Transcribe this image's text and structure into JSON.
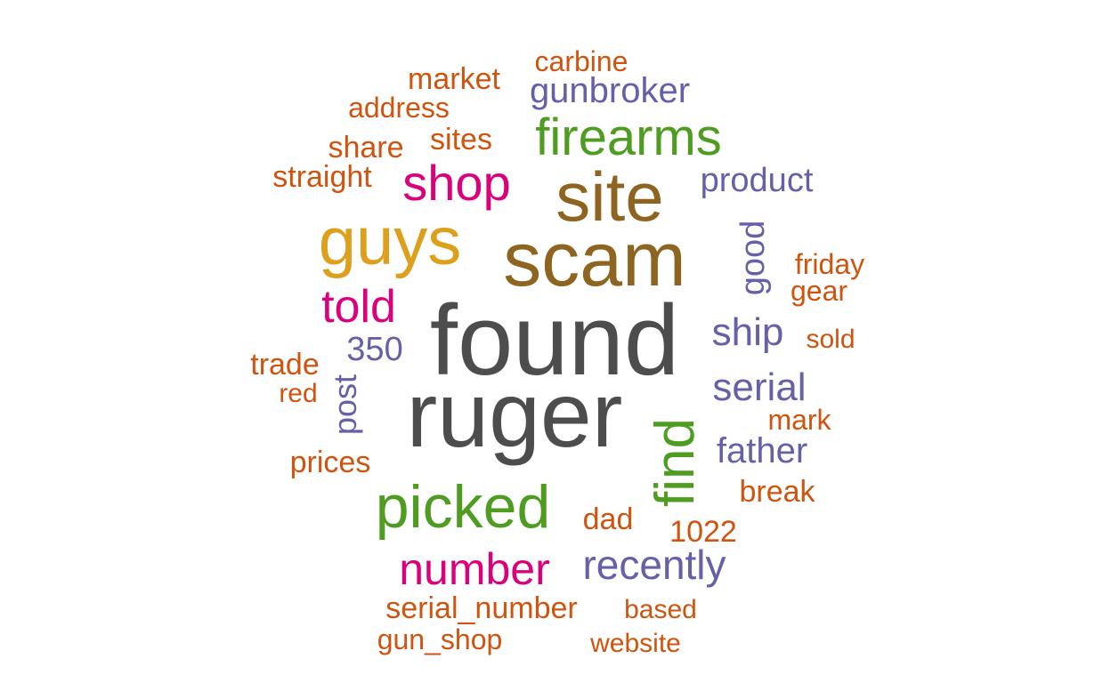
{
  "word_cloud": {
    "colors": {
      "gray": "#4d4d4d",
      "brown": "#8e6421",
      "gold": "#dea01c",
      "green": "#4e9c20",
      "pink": "#d9017c",
      "purple": "#6660a8",
      "orange": "#d0530e"
    },
    "words": {
      "found": "found",
      "ruger": "ruger",
      "scam": "scam",
      "site": "site",
      "guys": "guys",
      "firearms": "firearms",
      "picked": "picked",
      "shop": "shop",
      "find": "find",
      "number": "number",
      "recently": "recently",
      "told": "told",
      "gunbroker": "gunbroker",
      "ship": "ship",
      "serial": "serial",
      "product": "product",
      "good": "good",
      "father": "father",
      "350": "350",
      "post": "post",
      "sites": "sites",
      "market": "market",
      "carbine": "carbine",
      "address": "address",
      "share": "share",
      "straight": "straight",
      "friday": "friday",
      "gear": "gear",
      "sold": "sold",
      "mark": "mark",
      "trade": "trade",
      "red": "red",
      "prices": "prices",
      "break": "break",
      "dad": "dad",
      "1022": "1022",
      "serial_number": "serial_number",
      "based": "based",
      "gun_shop": "gun_shop",
      "website": "website"
    }
  }
}
